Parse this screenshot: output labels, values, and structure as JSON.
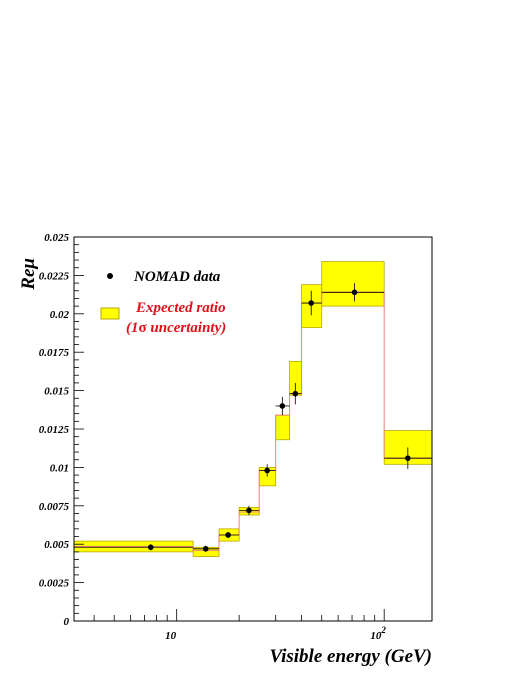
{
  "chart_data": {
    "type": "scatter",
    "title": "",
    "xlabel": "Visible energy (GeV)",
    "ylabel": "Reμ",
    "xscale": "log",
    "xlim": [
      3.2,
      170
    ],
    "ylim": [
      0,
      0.025
    ],
    "grid": false,
    "legend_position": "top-left",
    "x_tick_labels": [
      {
        "x": 10,
        "base": "10",
        "exp": ""
      },
      {
        "x": 100,
        "base": "10",
        "exp": "2"
      }
    ],
    "y_tick_labels": [
      {
        "y": 0,
        "label": "0"
      },
      {
        "y": 0.0025,
        "label": "0.0025"
      },
      {
        "y": 0.005,
        "label": "0.005"
      },
      {
        "y": 0.0075,
        "label": "0.0075"
      },
      {
        "y": 0.01,
        "label": "0.01"
      },
      {
        "y": 0.0125,
        "label": "0.0125"
      },
      {
        "y": 0.015,
        "label": "0.015"
      },
      {
        "y": 0.0175,
        "label": "0.0175"
      },
      {
        "y": 0.02,
        "label": "0.02"
      },
      {
        "y": 0.0225,
        "label": "0.0225"
      },
      {
        "y": 0.025,
        "label": "0.025"
      }
    ],
    "legend": [
      {
        "marker": "dot",
        "label": "NOMAD data",
        "color": "#000000"
      },
      {
        "marker": "band",
        "label_line1": "Expected ratio",
        "label_line2_pre": "(1",
        "label_line2_sigma": "σ",
        "label_line2_post": " uncertainty)",
        "color": "#e0101a"
      }
    ],
    "series": [
      {
        "name": "NOMAD data",
        "color": "#000000",
        "points": [
          {
            "x": 7.5,
            "y": 0.0048,
            "xlo": 3.2,
            "xhi": 12,
            "ylo": 0.0046,
            "yhi": 0.005
          },
          {
            "x": 13.8,
            "y": 0.0047,
            "xlo": 12,
            "xhi": 16,
            "ylo": 0.0045,
            "yhi": 0.0049
          },
          {
            "x": 17.7,
            "y": 0.0056,
            "xlo": 16,
            "xhi": 20,
            "ylo": 0.0054,
            "yhi": 0.0058
          },
          {
            "x": 22.3,
            "y": 0.0072,
            "xlo": 20,
            "xhi": 25,
            "ylo": 0.0069,
            "yhi": 0.0075
          },
          {
            "x": 27.3,
            "y": 0.0098,
            "xlo": 25,
            "xhi": 30,
            "ylo": 0.0094,
            "yhi": 0.0102
          },
          {
            "x": 32.3,
            "y": 0.014,
            "xlo": 30,
            "xhi": 35,
            "ylo": 0.0134,
            "yhi": 0.0146
          },
          {
            "x": 37.3,
            "y": 0.0148,
            "xlo": 35,
            "xhi": 40,
            "ylo": 0.0141,
            "yhi": 0.0155
          },
          {
            "x": 44.5,
            "y": 0.0207,
            "xlo": 40,
            "xhi": 50,
            "ylo": 0.0199,
            "yhi": 0.0215
          },
          {
            "x": 72,
            "y": 0.0214,
            "xlo": 50,
            "xhi": 100,
            "ylo": 0.0208,
            "yhi": 0.022
          },
          {
            "x": 130,
            "y": 0.0106,
            "xlo": 100,
            "xhi": 170,
            "ylo": 0.0099,
            "yhi": 0.0113
          }
        ]
      },
      {
        "name": "Expected ratio (1σ uncertainty)",
        "band_color": "#ffff00",
        "band_edge_color": "#b8a800",
        "line_color": "#f08080",
        "bins": [
          {
            "xlo": 3.2,
            "xhi": 12,
            "ylo": 0.0045,
            "yhi": 0.0052,
            "center": 0.00485
          },
          {
            "xlo": 12,
            "xhi": 16,
            "ylo": 0.0042,
            "yhi": 0.0048,
            "center": 0.0046
          },
          {
            "xlo": 16,
            "xhi": 20,
            "ylo": 0.0052,
            "yhi": 0.006,
            "center": 0.0056
          },
          {
            "xlo": 20,
            "xhi": 25,
            "ylo": 0.0069,
            "yhi": 0.0074,
            "center": 0.0071
          },
          {
            "xlo": 25,
            "xhi": 30,
            "ylo": 0.0088,
            "yhi": 0.01,
            "center": 0.0098
          },
          {
            "xlo": 30,
            "xhi": 35,
            "ylo": 0.0118,
            "yhi": 0.0134,
            "center": 0.0134
          },
          {
            "xlo": 35,
            "xhi": 40,
            "ylo": 0.0147,
            "yhi": 0.0169,
            "center": 0.0148
          },
          {
            "xlo": 40,
            "xhi": 50,
            "ylo": 0.0191,
            "yhi": 0.0219,
            "center": 0.0207
          },
          {
            "xlo": 50,
            "xhi": 100,
            "ylo": 0.0205,
            "yhi": 0.0234,
            "center": 0.0214
          },
          {
            "xlo": 100,
            "xhi": 170,
            "ylo": 0.0102,
            "yhi": 0.0124,
            "center": 0.0106
          }
        ]
      }
    ]
  }
}
